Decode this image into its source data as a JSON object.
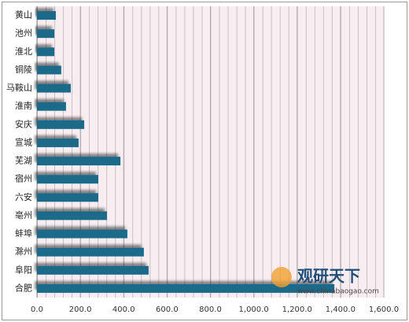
{
  "chart_data": {
    "type": "hbar",
    "categories": [
      "黄山",
      "池州",
      "淮北",
      "铜陵",
      "马鞍山",
      "淮南",
      "安庆",
      "宣城",
      "芜湖",
      "宿州",
      "六安",
      "亳州",
      "蚌埠",
      "滁州",
      "阜阳",
      "合肥"
    ],
    "values": [
      87,
      80,
      80,
      112,
      156,
      134,
      218,
      192,
      385,
      283,
      283,
      323,
      417,
      493,
      515,
      1372
    ],
    "color": "#1f6b8a",
    "xlim": [
      0,
      1600
    ],
    "xticks": [
      {
        "value": 0,
        "label": "0.0"
      },
      {
        "value": 200,
        "label": "200.0"
      },
      {
        "value": 400,
        "label": "400.0"
      },
      {
        "value": 600,
        "label": "600.0"
      },
      {
        "value": 800,
        "label": "800.0"
      },
      {
        "value": 1000,
        "label": "1,000.0"
      },
      {
        "value": 1200,
        "label": "1,200.0"
      },
      {
        "value": 1400,
        "label": "1,400.0"
      },
      {
        "value": 1600,
        "label": "1,600.0"
      }
    ],
    "grid": true,
    "watermark": {
      "name": "观研天下",
      "url": "www.chinabaogao.com"
    }
  }
}
